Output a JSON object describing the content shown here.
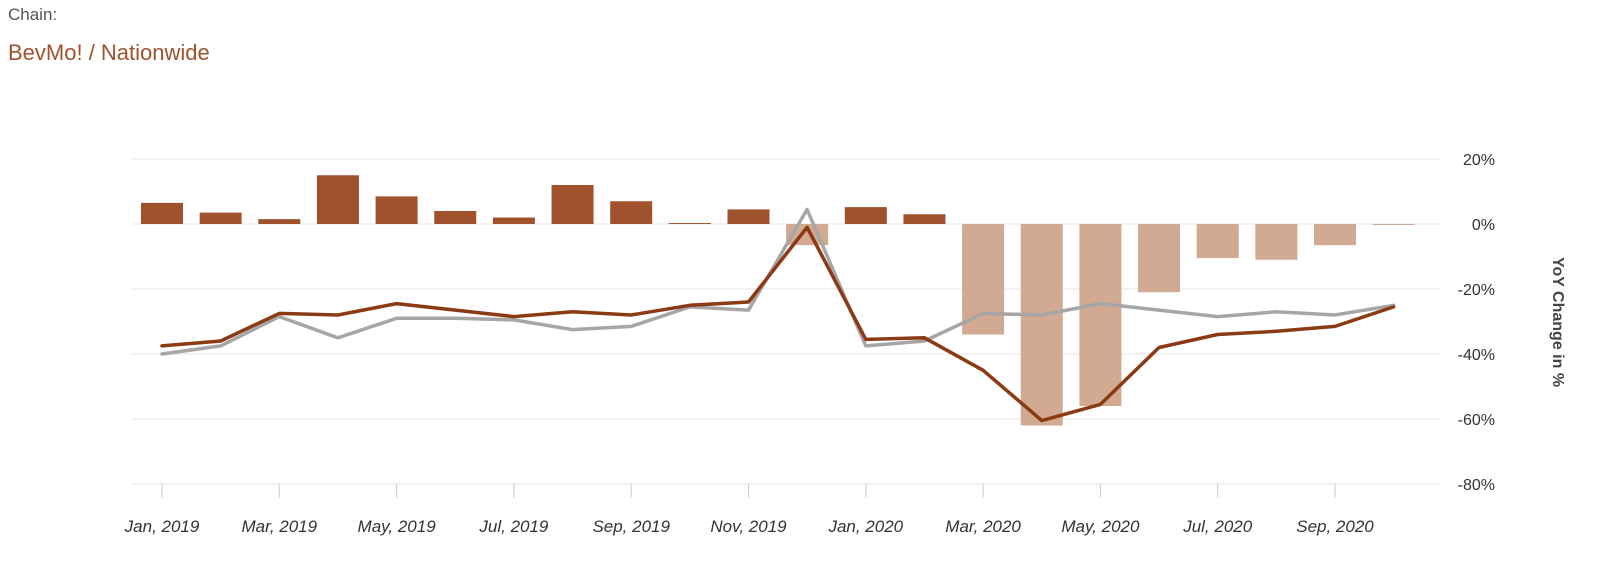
{
  "header": {
    "label": "Chain:",
    "chain_name": "BevMo! / Nationwide"
  },
  "colors": {
    "accent": "#a0522d",
    "bar_positive": "#a0522d",
    "bar_negative": "#d2aa92",
    "line_chain": "#8b3a14",
    "line_benchmark": "#a6a6a6",
    "grid": "#e6e6e6"
  },
  "chart_data": {
    "type": "bar",
    "ylabel": "YoY Change in %",
    "ylim": [
      -80,
      20
    ],
    "y_ticks": [
      20,
      0,
      -20,
      -40,
      -60,
      -80
    ],
    "y_tick_labels": [
      "20%",
      "0%",
      "-20%",
      "-40%",
      "-60%",
      "-80%"
    ],
    "y_axis_position": "right",
    "grid": true,
    "categories": [
      "Jan, 2019",
      "Feb, 2019",
      "Mar, 2019",
      "Apr, 2019",
      "May, 2019",
      "Jun, 2019",
      "Jul, 2019",
      "Aug, 2019",
      "Sep, 2019",
      "Oct, 2019",
      "Nov, 2019",
      "Dec, 2019",
      "Jan, 2020",
      "Feb, 2020",
      "Mar, 2020",
      "Apr, 2020",
      "May, 2020",
      "Jun, 2020",
      "Jul, 2020",
      "Aug, 2020",
      "Sep, 2020",
      "Oct, 2020"
    ],
    "x_tick_labels": [
      "Jan, 2019",
      "Mar, 2019",
      "May, 2019",
      "Jul, 2019",
      "Sep, 2019",
      "Nov, 2019",
      "Jan, 2020",
      "Mar, 2020",
      "May, 2020",
      "Jul, 2020",
      "Sep, 2020"
    ],
    "series": [
      {
        "type": "bar",
        "values": [
          6.5,
          3.5,
          1.5,
          15,
          8.5,
          4,
          2,
          12,
          7,
          0.3,
          4.5,
          -6.5,
          5.2,
          3,
          -34,
          -62,
          -56,
          -21,
          -10.5,
          -11,
          -6.5,
          -0.3
        ]
      },
      {
        "type": "line",
        "values": [
          -37.5,
          -36,
          -27.5,
          -28,
          -24.5,
          -26.5,
          -28.5,
          -27,
          -28,
          -25,
          -24,
          -1,
          -35.5,
          -35,
          -45,
          -60.5,
          -55.5,
          -38,
          -34,
          -33,
          -31.5,
          -25.5
        ]
      },
      {
        "type": "line",
        "values": [
          -40,
          -37.5,
          -28.5,
          -35,
          -29,
          -29,
          -29.5,
          -32.5,
          -31.5,
          -25.5,
          -26.5,
          4.5,
          -37.5,
          -36,
          -27.5,
          -28,
          -24.5,
          -26.5,
          -28.5,
          -27,
          -28,
          -25
        ]
      }
    ]
  }
}
